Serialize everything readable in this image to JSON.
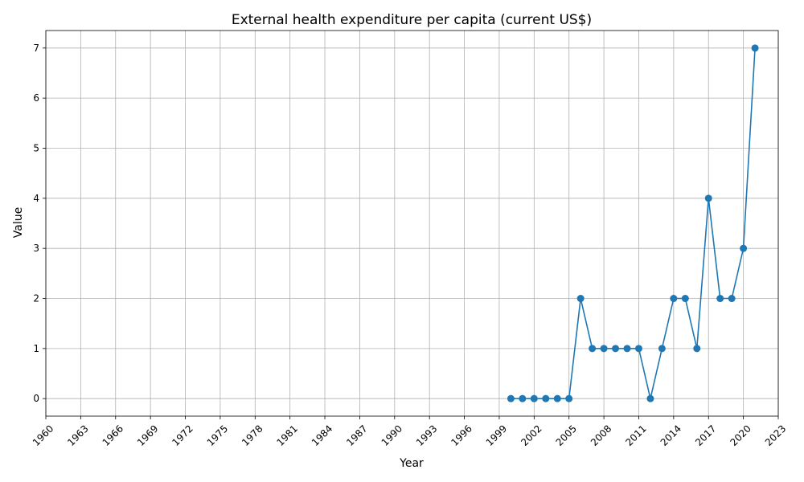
{
  "chart_data": {
    "type": "line",
    "title": "External health expenditure per capita (current US$)",
    "xlabel": "Year",
    "ylabel": "Value",
    "xlim": [
      1960,
      2023
    ],
    "ylim": [
      -0.35,
      7.35
    ],
    "x_ticks": [
      1960,
      1963,
      1966,
      1969,
      1972,
      1975,
      1978,
      1981,
      1984,
      1987,
      1990,
      1993,
      1996,
      1999,
      2002,
      2005,
      2008,
      2011,
      2014,
      2017,
      2020,
      2023
    ],
    "y_ticks": [
      0,
      1,
      2,
      3,
      4,
      5,
      6,
      7
    ],
    "grid": true,
    "line_color": "#1f77b4",
    "marker": "circle",
    "x": [
      2000,
      2001,
      2002,
      2003,
      2004,
      2005,
      2006,
      2007,
      2008,
      2009,
      2010,
      2011,
      2012,
      2013,
      2014,
      2015,
      2016,
      2017,
      2018,
      2019,
      2020,
      2021
    ],
    "series": [
      {
        "values": [
          0,
          0,
          0,
          0,
          0,
          0,
          2,
          1,
          1,
          1,
          1,
          1,
          0,
          1,
          2,
          2,
          1,
          4,
          2,
          2,
          3,
          7
        ]
      }
    ]
  }
}
